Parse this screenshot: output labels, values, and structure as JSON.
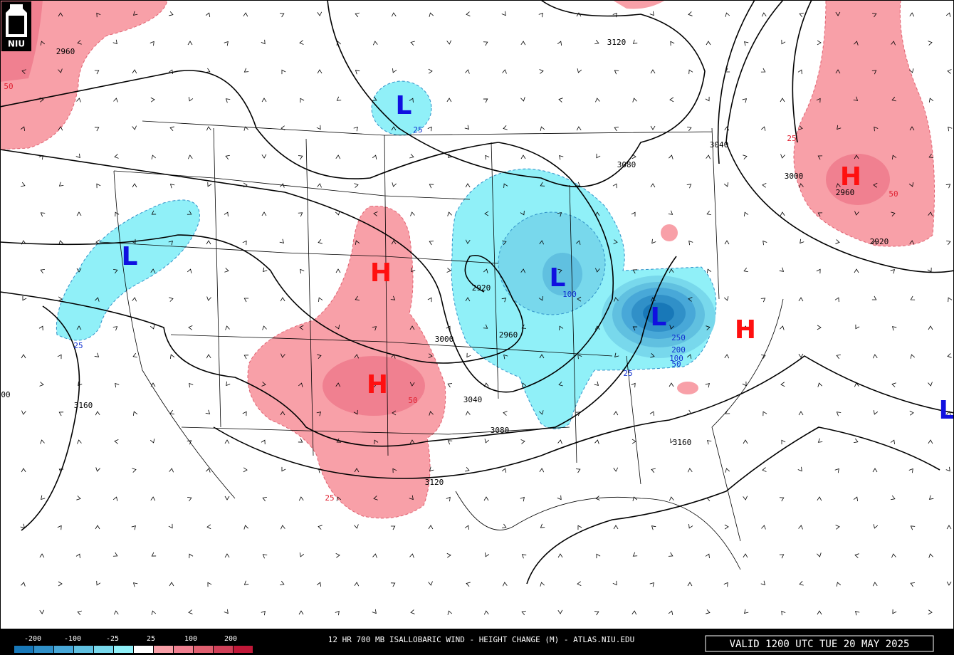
{
  "logo": "NIU",
  "centers": [
    {
      "label": "H",
      "color": "#ff1010"
    },
    {
      "label": "L",
      "color": "#1010e0"
    },
    {
      "label": "L",
      "color": "#1010e0"
    },
    {
      "label": "L",
      "color": "#1010e0"
    },
    {
      "label": "L",
      "color": "#1010e0"
    },
    {
      "label": "H",
      "color": "#ff1010"
    },
    {
      "label": "H",
      "color": "#ff1010"
    },
    {
      "label": "H",
      "color": "#ff1010"
    },
    {
      "label": "L",
      "color": "#1010e0"
    }
  ],
  "contour_labels": [
    "2960",
    "50",
    "3120",
    "3040",
    "3080",
    "3000",
    "2960",
    "50",
    "2920",
    "25",
    "2920",
    "100",
    "2960",
    "3000",
    "3040",
    "3080",
    "3120",
    "50",
    "25",
    "3160",
    "00",
    "3160",
    "25",
    "25",
    "25",
    "250",
    "200",
    "100",
    "50"
  ],
  "colorbar": {
    "labels": [
      "-200",
      "-100",
      "-25",
      "25",
      "100",
      "200"
    ],
    "colors": [
      "#1878b8",
      "#3090c8",
      "#48a8d8",
      "#60c0e0",
      "#78d8ec",
      "#90f0f8",
      "#ffffff",
      "#f8a0a8",
      "#f08090",
      "#e06070",
      "#d04058",
      "#c01838"
    ]
  },
  "title": "12 HR 700 MB ISALLOBARIC WIND - HEIGHT CHANGE (M) - ATLAS.NIU.EDU",
  "valid": "VALID 1200 UTC TUE 20 MAY 2025"
}
